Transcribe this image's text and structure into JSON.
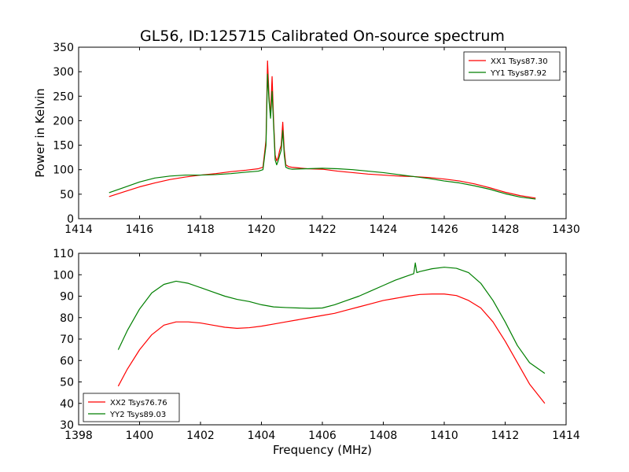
{
  "figure": {
    "title": "GL56, ID:125715 Calibrated On-source spectrum",
    "ylabel": "Power in Kelvin",
    "xlabel": "Frequency (MHz)"
  },
  "colors": {
    "red": "#ff0000",
    "green": "#007f00"
  },
  "chart_data": [
    {
      "type": "line",
      "xlim": [
        1414,
        1430
      ],
      "ylim": [
        0,
        350
      ],
      "xticks": [
        1414,
        1416,
        1418,
        1420,
        1422,
        1424,
        1426,
        1428,
        1430
      ],
      "yticks": [
        0,
        50,
        100,
        150,
        200,
        250,
        300,
        350
      ],
      "legend_position": "top-right",
      "grid": false,
      "series": [
        {
          "name": "XX1 Tsys87.30",
          "color": "#ff0000",
          "x": [
            1415.0,
            1415.5,
            1416.0,
            1416.5,
            1417.0,
            1417.5,
            1418.0,
            1418.5,
            1419.0,
            1419.5,
            1419.9,
            1420.05,
            1420.15,
            1420.2,
            1420.25,
            1420.3,
            1420.35,
            1420.4,
            1420.45,
            1420.5,
            1420.55,
            1420.6,
            1420.65,
            1420.7,
            1420.75,
            1420.8,
            1420.9,
            1421.0,
            1421.5,
            1422.0,
            1422.5,
            1423.0,
            1423.5,
            1424.0,
            1424.5,
            1425.0,
            1425.5,
            1426.0,
            1426.5,
            1427.0,
            1427.5,
            1428.0,
            1428.5,
            1429.0
          ],
          "y": [
            45,
            55,
            65,
            73,
            80,
            85,
            89,
            92,
            96,
            99,
            102,
            105,
            160,
            322,
            250,
            210,
            290,
            200,
            130,
            118,
            125,
            140,
            150,
            197,
            140,
            110,
            106,
            105,
            102,
            101,
            97,
            94,
            91,
            89,
            87,
            86,
            84,
            81,
            77,
            71,
            63,
            54,
            47,
            42
          ]
        },
        {
          "name": "YY1 Tsys87.92",
          "color": "#007f00",
          "x": [
            1415.0,
            1415.5,
            1416.0,
            1416.5,
            1417.0,
            1417.5,
            1418.0,
            1418.5,
            1419.0,
            1419.5,
            1419.9,
            1420.05,
            1420.15,
            1420.2,
            1420.25,
            1420.3,
            1420.35,
            1420.4,
            1420.45,
            1420.5,
            1420.55,
            1420.6,
            1420.65,
            1420.7,
            1420.75,
            1420.8,
            1420.9,
            1421.0,
            1421.5,
            1422.0,
            1422.5,
            1423.0,
            1423.5,
            1424.0,
            1424.5,
            1425.0,
            1425.5,
            1426.0,
            1426.5,
            1427.0,
            1427.5,
            1428.0,
            1428.5,
            1429.0
          ],
          "y": [
            53,
            64,
            75,
            83,
            87,
            89,
            89,
            90,
            92,
            95,
            97,
            100,
            150,
            295,
            240,
            205,
            260,
            190,
            120,
            110,
            118,
            130,
            140,
            180,
            130,
            105,
            102,
            101,
            102,
            103,
            102,
            100,
            97,
            94,
            90,
            86,
            82,
            77,
            73,
            67,
            60,
            51,
            44,
            40
          ]
        }
      ]
    },
    {
      "type": "line",
      "xlim": [
        1398,
        1414
      ],
      "ylim": [
        30,
        110
      ],
      "xticks": [
        1398,
        1400,
        1402,
        1404,
        1406,
        1408,
        1410,
        1412,
        1414
      ],
      "yticks": [
        30,
        40,
        50,
        60,
        70,
        80,
        90,
        100,
        110
      ],
      "legend_position": "bottom-left",
      "grid": false,
      "series": [
        {
          "name": "XX2 Tsys76.76",
          "color": "#ff0000",
          "x": [
            1399.3,
            1399.6,
            1400.0,
            1400.4,
            1400.8,
            1401.2,
            1401.6,
            1402.0,
            1402.4,
            1402.8,
            1403.2,
            1403.6,
            1404.0,
            1404.4,
            1404.8,
            1405.2,
            1405.6,
            1406.0,
            1406.4,
            1406.8,
            1407.2,
            1407.6,
            1408.0,
            1408.4,
            1408.8,
            1409.2,
            1409.6,
            1410.0,
            1410.4,
            1410.8,
            1411.2,
            1411.6,
            1412.0,
            1412.4,
            1412.8,
            1413.3
          ],
          "y": [
            48,
            56,
            65,
            72,
            76.5,
            78,
            78,
            77.5,
            76.5,
            75.5,
            75,
            75.3,
            76,
            77,
            78,
            79,
            80,
            81,
            82,
            83.5,
            85,
            86.5,
            88,
            89,
            90,
            90.8,
            91,
            91,
            90.3,
            88,
            84.5,
            78,
            69,
            59,
            49,
            40
          ]
        },
        {
          "name": "YY2 Tsys89.03",
          "color": "#007f00",
          "x": [
            1399.3,
            1399.6,
            1400.0,
            1400.4,
            1400.8,
            1401.2,
            1401.6,
            1402.0,
            1402.4,
            1402.8,
            1403.2,
            1403.6,
            1404.0,
            1404.4,
            1404.8,
            1405.2,
            1405.6,
            1406.0,
            1406.4,
            1406.8,
            1407.2,
            1407.6,
            1408.0,
            1408.4,
            1408.8,
            1409.0,
            1409.05,
            1409.1,
            1409.2,
            1409.6,
            1410.0,
            1410.4,
            1410.8,
            1411.2,
            1411.6,
            1412.0,
            1412.4,
            1412.8,
            1413.3
          ],
          "y": [
            65,
            74,
            84,
            91.5,
            95.5,
            97,
            96,
            94,
            92,
            90,
            88.5,
            87.5,
            86,
            85,
            84.7,
            84.5,
            84.3,
            84.5,
            86,
            88,
            90,
            92.5,
            95,
            97.5,
            99.5,
            100.5,
            105.5,
            101,
            101.5,
            102.8,
            103.5,
            103,
            101,
            96,
            88,
            78,
            67,
            59,
            54
          ]
        }
      ]
    }
  ]
}
